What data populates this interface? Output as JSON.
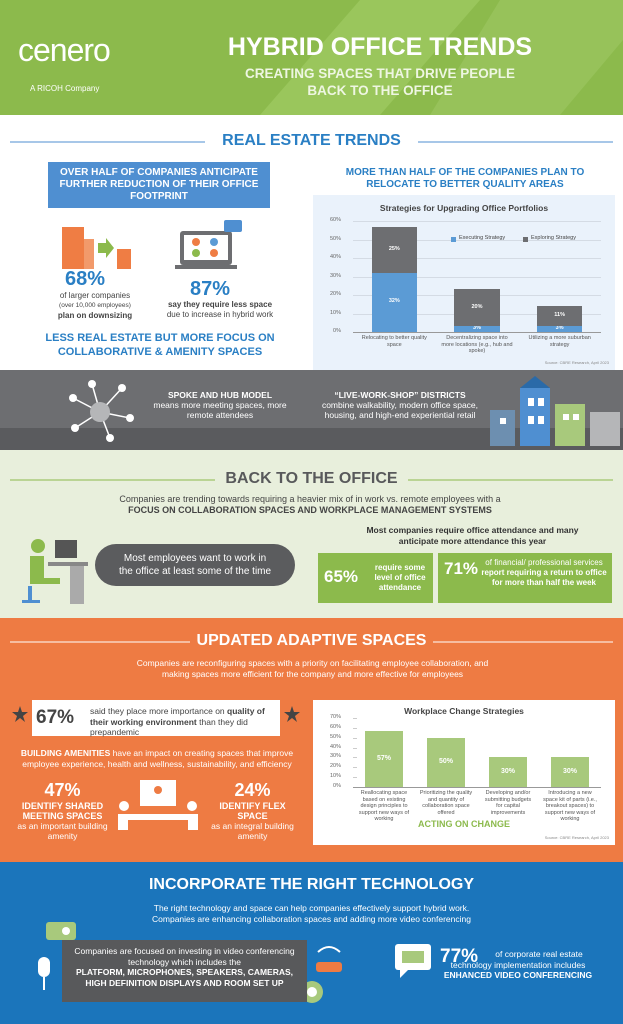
{
  "header": {
    "logo": "cenero",
    "logo_tagline": "A RICOH Company",
    "title": "HYBRID OFFICE TRENDS",
    "subtitle": "CREATING SPACES THAT DRIVE PEOPLE BACK TO THE OFFICE"
  },
  "real_estate": {
    "heading": "REAL ESTATE TRENDS",
    "callout": "OVER HALF OF COMPANIES ANTICIPATE FURTHER REDUCTION OF THEIR OFFICE FOOTPRINT",
    "stat1": {
      "value": "68%",
      "line1": "of larger companies",
      "line2": "(over 10,000 employees)",
      "line3": "plan on downsizing"
    },
    "stat2": {
      "value": "87%",
      "line1": "say they require less space",
      "line2": "due to increase in hybrid work"
    },
    "conclusion": "LESS REAL ESTATE BUT MORE FOCUS ON COLLABORATIVE & AMENITY SPACES",
    "chart_heading": "MORE THAN HALF OF THE COMPANIES PLAN TO RELOCATE TO BETTER QUALITY AREAS",
    "chart": {
      "type": "bar",
      "stacked": true,
      "title": "Strategies for Upgrading Office Portfolios",
      "categories": [
        "Relocating to better quality space",
        "Decentralizing space into more locations (e.g., hub and spoke)",
        "Utilizing a more suburban strategy"
      ],
      "series": [
        {
          "name": "Executing Strategy",
          "color": "#5b9bd5",
          "values": [
            32,
            3,
            3
          ],
          "value_labels": [
            "32%",
            "3%",
            "3%"
          ]
        },
        {
          "name": "Exploring Strategy",
          "color": "#6d6e71",
          "values": [
            25,
            20,
            11
          ],
          "value_labels": [
            "25%",
            "20%",
            "11%"
          ]
        }
      ],
      "ylim": [
        0,
        60
      ],
      "yticks": [
        {
          "value": 0,
          "label": "0%"
        },
        {
          "value": 10,
          "label": "10%"
        },
        {
          "value": 20,
          "label": "20%"
        },
        {
          "value": 30,
          "label": "30%"
        },
        {
          "value": 40,
          "label": "40%"
        },
        {
          "value": 50,
          "label": "50%"
        },
        {
          "value": 60,
          "label": "60%"
        }
      ],
      "grid": true,
      "legend": "top-right",
      "source": "Source: CBRE Research, April 2023"
    }
  },
  "models": {
    "spoke_title": "SPOKE AND HUB MODEL",
    "spoke_text": "means more meeting spaces, more remote attendees",
    "district_title": "“LIVE-WORK-SHOP” DISTRICTS",
    "district_text": "combine walkability, modern office space, housing, and high-end experiential retail"
  },
  "back_to_office": {
    "heading": "BACK TO THE OFFICE",
    "intro": "Companies are trending towards requiring a heavier mix of in work vs. remote employees with a",
    "intro_bold": "FOCUS ON COLLABORATION SPACES AND WORKPLACE MANAGEMENT SYSTEMS",
    "pill": "Most employees want to work in the office at least some of the time",
    "attendance_heading": "Most companies require office attendance and many anticipate more attendance this year",
    "stat1": {
      "value": "65%",
      "text": "require some level of office attendance"
    },
    "stat2": {
      "value": "71%",
      "text": "of financial/ professional services",
      "text_bold": "report requiring a return to office for more than half the week"
    }
  },
  "adaptive": {
    "heading": "UPDATED ADAPTIVE SPACES",
    "intro": "Companies are reconfiguring spaces with a priority on facilitating employee collaboration, and making spaces more efficient for the company and more effective for employees",
    "stat67": {
      "value": "67%",
      "text1": "said they place more importance on",
      "text_bold": "quality of their working environment",
      "text2": "than they did prepandemic"
    },
    "amenities_bold": "BUILDING AMENITIES",
    "amenities_text": "have an impact on creating spaces that improve employee experience, health and wellness, sustainability, and efficiency",
    "stat47": {
      "value": "47%",
      "title": "IDENTIFY SHARED MEETING SPACES",
      "text": "as an important building amenity"
    },
    "stat24": {
      "value": "24%",
      "title": "IDENTIFY FLEX SPACE",
      "text": "as an integral building amenity"
    },
    "chart": {
      "type": "bar",
      "title": "Workplace Change Strategies",
      "subtitle": "ACTING ON CHANGE",
      "categories": [
        "Reallocating space based on existing design principles to support new ways of working",
        "Prioritizing the quality and quantity of collaboration space offered",
        "Developing and/or submitting budgets for capital improvements",
        "Introducing a new space kit of parts (i.e., breakout spaces) to support new ways of working"
      ],
      "values": [
        57,
        50,
        30,
        30
      ],
      "value_labels": [
        "57%",
        "50%",
        "30%",
        "30%"
      ],
      "color": "#a8c97c",
      "ylim": [
        0,
        70
      ],
      "yticks": [
        {
          "value": 0,
          "label": "0%"
        },
        {
          "value": 10,
          "label": "10%"
        },
        {
          "value": 20,
          "label": "20%"
        },
        {
          "value": 30,
          "label": "30%"
        },
        {
          "value": 40,
          "label": "40%"
        },
        {
          "value": 50,
          "label": "50%"
        },
        {
          "value": 60,
          "label": "60%"
        },
        {
          "value": 70,
          "label": "70%"
        }
      ],
      "grid": false,
      "source": "Source: CBRE Research, April 2023"
    }
  },
  "technology": {
    "heading": "INCORPORATE THE RIGHT TECHNOLOGY",
    "intro": "The right technology and space can help companies effectively support hybrid work.",
    "intro2": "Companies are enhancing collaboration spaces and adding more video conferencing",
    "box_text": "Companies are focused on investing in video conferencing technology which includes the",
    "box_bold": "PLATFORM, MICROPHONES, SPEAKERS, CAMERAS, HIGH DEFINITION DISPLAYS AND ROOM SET UP",
    "stat": {
      "value": "77%",
      "text": "of corporate real estate technology implementation includes",
      "text_bold": "ENHANCED VIDEO CONFERENCING"
    }
  }
}
